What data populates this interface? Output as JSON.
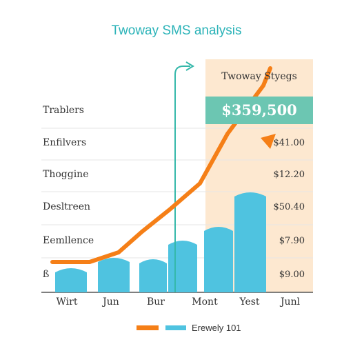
{
  "chart_data": {
    "type": "bar",
    "title": "Twoway SMS analysis",
    "categories": [
      "Wirt",
      "Jun",
      "Bur",
      "Mont",
      "Yest",
      "Junl"
    ],
    "row_labels": [
      "Trablers",
      "Enfilvers",
      "Thoggine",
      "Desltreen",
      "Eemllence",
      "ß"
    ],
    "value_labels": [
      "$41.00",
      "$12.20",
      "$50.40",
      "$7.90",
      "$9.00"
    ],
    "bars": [
      0.35,
      0.5,
      0.48,
      0.75,
      0.95,
      1.45
    ],
    "line": [
      0.44,
      0.58,
      0.88,
      1.2,
      1.58,
      2.3,
      3.0
    ],
    "panel_header": "Twoway Styegs",
    "highlight_value": "$359,500",
    "legend": {
      "label": "Erewely 101"
    },
    "colors": {
      "line": "#f57f17",
      "bar": "#4fc3e0",
      "arrow": "#35b8aa",
      "panel": "#fde8d0",
      "highlight": "#6cc6b2"
    }
  }
}
